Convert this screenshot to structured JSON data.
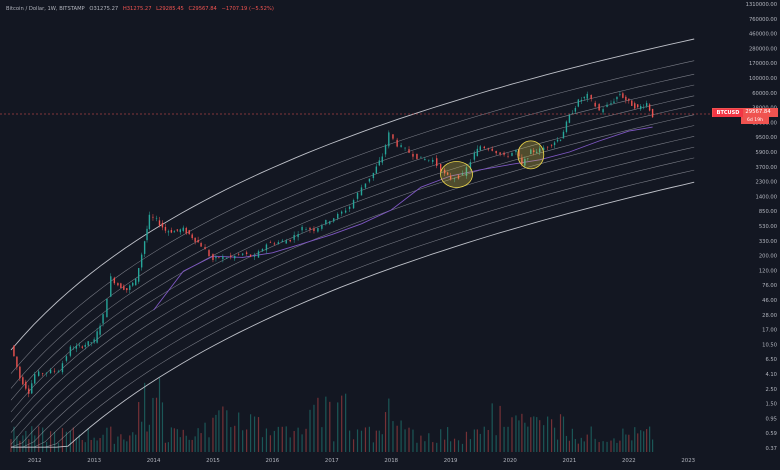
{
  "header": {
    "pair": "Bitcoin / Dollar, 1W, BITSTAMP",
    "open": "O31275.27",
    "high": "H31275.27",
    "low": "L29285.45",
    "close": "C29567.84",
    "change": "−1707.19 (−5.52%)"
  },
  "price_badge": {
    "symbol": "BTCUSD",
    "value": "29567.84",
    "countdown": "6d 19h"
  },
  "colors": {
    "background": "#131722",
    "up": "#26a69a",
    "down": "#ef5350",
    "band": "#d1d4dc",
    "ma": "#7e57c2",
    "highlight": "#f0d94b"
  },
  "chart_data": {
    "type": "line",
    "title": "",
    "xlabel": "",
    "ylabel": "",
    "log_scale": true,
    "ylim": [
      0.37,
      1310000
    ],
    "x_ticks": [
      "2012",
      "2013",
      "2014",
      "2015",
      "2016",
      "2017",
      "2018",
      "2019",
      "2020",
      "2021",
      "2022",
      "2023"
    ],
    "y_ticks": [
      "1310000.00",
      "760000.00",
      "460000.00",
      "280000.00",
      "170000.00",
      "100000.00",
      "60000.00",
      "38000.00",
      "15000.00",
      "9500.00",
      "5900.00",
      "3700.00",
      "2300.00",
      "1400.00",
      "850.00",
      "530.00",
      "330.00",
      "200.00",
      "120.00",
      "76.00",
      "46.00",
      "28.00",
      "17.00",
      "10.50",
      "6.50",
      "4.10",
      "2.50",
      "1.50",
      "0.95",
      "0.59",
      "0.37"
    ],
    "series": [
      {
        "name": "BTCUSD",
        "x": [
          2011.6,
          2011.75,
          2011.9,
          2012.0,
          2012.2,
          2012.4,
          2012.6,
          2012.75,
          2012.9,
          2013.0,
          2013.15,
          2013.28,
          2013.4,
          2013.55,
          2013.7,
          2013.85,
          2013.93,
          2014.05,
          2014.2,
          2014.35,
          2014.5,
          2014.65,
          2014.8,
          2015.0,
          2015.1,
          2015.3,
          2015.5,
          2015.7,
          2015.9,
          2016.1,
          2016.3,
          2016.5,
          2016.7,
          2016.9,
          2017.1,
          2017.3,
          2017.5,
          2017.7,
          2017.85,
          2017.96,
          2018.1,
          2018.3,
          2018.5,
          2018.7,
          2018.9,
          2019.0,
          2019.2,
          2019.4,
          2019.5,
          2019.7,
          2019.9,
          2020.1,
          2020.2,
          2020.35,
          2020.5,
          2020.7,
          2020.85,
          2021.0,
          2021.15,
          2021.3,
          2021.5,
          2021.7,
          2021.85,
          2022.0,
          2022.15,
          2022.3,
          2022.4
        ],
        "y": [
          12,
          4,
          2.5,
          4.5,
          4.9,
          5.2,
          11,
          11.5,
          13,
          14,
          33,
          120,
          95,
          80,
          110,
          420,
          950,
          850,
          600,
          580,
          620,
          480,
          360,
          220,
          240,
          240,
          270,
          240,
          380,
          400,
          440,
          650,
          620,
          800,
          1000,
          1350,
          2600,
          4200,
          7500,
          16000,
          11000,
          8500,
          6800,
          6500,
          4000,
          3500,
          3900,
          8000,
          10500,
          9500,
          7300,
          9000,
          5500,
          8700,
          9200,
          11500,
          13800,
          29000,
          48000,
          58000,
          35000,
          45000,
          62000,
          46000,
          38000,
          45000,
          29567.84
        ]
      },
      {
        "name": "",
        "x": [
          2014.0,
          2014.5,
          2015.0,
          2015.5,
          2016.0,
          2016.5,
          2017.0,
          2017.5,
          2018.0,
          2018.5,
          2019.0,
          2019.5,
          2020.0,
          2020.5,
          2021.0,
          2021.5,
          2022.0,
          2022.4
        ],
        "y": [
          40,
          150,
          250,
          240,
          280,
          380,
          520,
          750,
          1200,
          2600,
          3800,
          4700,
          5600,
          6600,
          8600,
          12500,
          17500,
          20000
        ]
      }
    ],
    "highlights": [
      {
        "x": 2019.1,
        "y": 4000
      },
      {
        "x": 2020.35,
        "y": 7800
      }
    ],
    "current_price": 29567.84,
    "grid": false,
    "legend": "none"
  }
}
